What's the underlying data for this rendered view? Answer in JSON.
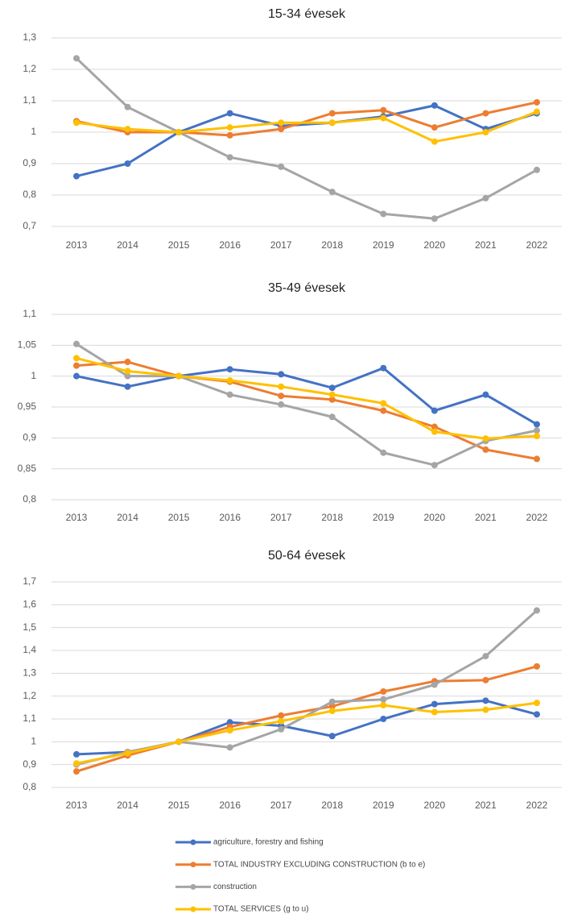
{
  "chart_data": [
    {
      "type": "line",
      "title": "15-34 évesek",
      "categories": [
        "2013",
        "2014",
        "2015",
        "2016",
        "2017",
        "2018",
        "2019",
        "2020",
        "2021",
        "2022"
      ],
      "ylim": [
        0.7,
        1.3
      ],
      "yticks": [
        {
          "value": 0.7,
          "label": "0,7"
        },
        {
          "value": 0.8,
          "label": "0,8"
        },
        {
          "value": 0.9,
          "label": "0,9"
        },
        1,
        {
          "value": 1.1,
          "label": "1,1"
        },
        {
          "value": 1.2,
          "label": "1,2"
        },
        {
          "value": 1.3,
          "label": "1,3"
        }
      ],
      "grid": true,
      "series": [
        {
          "values": [
            0.86,
            0.9,
            1.0,
            1.06,
            1.02,
            1.03,
            1.05,
            1.085,
            1.01,
            1.06
          ]
        },
        {
          "values": [
            1.035,
            1.0,
            1.0,
            0.99,
            1.01,
            1.06,
            1.07,
            1.015,
            1.06,
            1.095
          ]
        },
        {
          "values": [
            1.235,
            1.08,
            1.0,
            0.92,
            0.89,
            0.81,
            0.74,
            0.725,
            0.79,
            0.88
          ]
        },
        {
          "values": [
            1.03,
            1.01,
            1.0,
            1.015,
            1.03,
            1.03,
            1.045,
            0.97,
            1.0,
            1.065
          ]
        }
      ]
    },
    {
      "type": "line",
      "title": "35-49 évesek",
      "categories": [
        "2013",
        "2014",
        "2015",
        "2016",
        "2017",
        "2018",
        "2019",
        "2020",
        "2021",
        "2022"
      ],
      "ylim": [
        0.8,
        1.1
      ],
      "yticks": [
        {
          "value": 0.8,
          "label": "0,8"
        },
        {
          "value": 0.85,
          "label": "0,85"
        },
        {
          "value": 0.9,
          "label": "0,9"
        },
        {
          "value": 0.95,
          "label": "0,95"
        },
        1,
        {
          "value": 1.05,
          "label": "1,05"
        },
        {
          "value": 1.1,
          "label": "1,1"
        }
      ],
      "grid": true,
      "series": [
        {
          "values": [
            1.0,
            0.983,
            1.0,
            1.011,
            1.003,
            0.981,
            1.013,
            0.944,
            0.97,
            0.922
          ]
        },
        {
          "values": [
            1.017,
            1.023,
            1.0,
            0.991,
            0.968,
            0.962,
            0.944,
            0.918,
            0.881,
            0.866
          ]
        },
        {
          "values": [
            1.052,
            1.0,
            1.0,
            0.97,
            0.954,
            0.934,
            0.876,
            0.856,
            0.895,
            0.912
          ]
        },
        {
          "values": [
            1.029,
            1.008,
            1.0,
            0.993,
            0.983,
            0.97,
            0.956,
            0.91,
            0.899,
            0.903
          ]
        }
      ]
    },
    {
      "type": "line",
      "title": "50-64 évesek",
      "categories": [
        "2013",
        "2014",
        "2015",
        "2016",
        "2017",
        "2018",
        "2019",
        "2020",
        "2021",
        "2022"
      ],
      "ylim": [
        0.8,
        1.7
      ],
      "yticks": [
        {
          "value": 0.8,
          "label": "0,8"
        },
        {
          "value": 0.9,
          "label": "0,9"
        },
        1,
        {
          "value": 1.1,
          "label": "1,1"
        },
        {
          "value": 1.2,
          "label": "1,2"
        },
        {
          "value": 1.3,
          "label": "1,3"
        },
        {
          "value": 1.4,
          "label": "1,4"
        },
        {
          "value": 1.5,
          "label": "1,5"
        },
        {
          "value": 1.6,
          "label": "1,6"
        },
        {
          "value": 1.7,
          "label": "1,7"
        }
      ],
      "grid": true,
      "series": [
        {
          "values": [
            0.945,
            0.955,
            1.0,
            1.085,
            1.07,
            1.025,
            1.1,
            1.165,
            1.18,
            1.12
          ]
        },
        {
          "values": [
            0.87,
            0.94,
            1.0,
            1.065,
            1.115,
            1.155,
            1.22,
            1.265,
            1.27,
            1.33
          ]
        },
        {
          "values": [
            0.9,
            0.955,
            1.0,
            0.975,
            1.055,
            1.175,
            1.185,
            1.25,
            1.375,
            1.575
          ]
        },
        {
          "values": [
            0.905,
            0.95,
            1.0,
            1.05,
            1.09,
            1.135,
            1.16,
            1.13,
            1.14,
            1.17
          ]
        }
      ]
    }
  ],
  "legend": {
    "series": [
      {
        "name": "agriculture, forestry and fishing",
        "color": "#4472c4"
      },
      {
        "name": "TOTAL INDUSTRY EXCLUDING CONSTRUCTION (b to e)",
        "color": "#ed7d31"
      },
      {
        "name": "construction",
        "color": "#a5a5a5"
      },
      {
        "name": "TOTAL SERVICES (g to u)",
        "color": "#ffc000"
      }
    ]
  }
}
